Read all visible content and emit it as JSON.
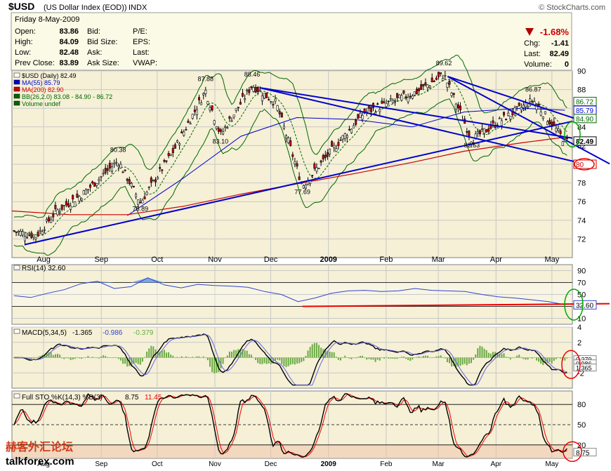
{
  "header": {
    "symbol": "$USD",
    "name": "(US Dollar Index (EOD))",
    "exchange": "INDX",
    "copyright": "© StockCharts.com"
  },
  "quote": {
    "date_line": "Friday   8-May-2009",
    "left": [
      {
        "label": "Open:",
        "value": "83.86"
      },
      {
        "label": "High:",
        "value": "84.09"
      },
      {
        "label": "Low:",
        "value": "82.48"
      },
      {
        "label": "Prev Close:",
        "value": "83.89"
      }
    ],
    "mid": [
      "Bid:",
      "Bid Size:",
      "Ask:",
      "Ask Size:"
    ],
    "mid2": [
      "P/E:",
      "EPS:",
      "Last:",
      "VWAP:"
    ],
    "pct_change": "-1.68%",
    "right": [
      {
        "label": "Chg:",
        "value": "-1.41"
      },
      {
        "label": "Last:",
        "value": "82.49"
      },
      {
        "label": "Volume:",
        "value": "0"
      }
    ],
    "down_color": "#cc0000"
  },
  "price_legend": [
    {
      "text": "$USD (Daily) 82.49",
      "color": "#000000"
    },
    {
      "text": "MA(55) 85.79",
      "color": "#0000cc"
    },
    {
      "text": "MA(200) 82.90",
      "color": "#cc0000"
    },
    {
      "text": "BB(26,2.0) 83.08 - 84.90 - 86.72",
      "color": "#006600"
    },
    {
      "text": "Volume undef",
      "color": "#006600"
    }
  ],
  "rsi_legend": "RSI(14) 32.60",
  "macd_legend": {
    "label": "MACD(5,34,5)",
    "macd": "-1.365",
    "signal": "-0.986",
    "hist": "-0.379"
  },
  "sto_legend": {
    "label": "Full STO %K(14,3) %D(3)",
    "k": "8.75",
    "d": "11.45"
  },
  "watermark": {
    "chinese": "赫客外汇论坛",
    "site": "talkforex.com"
  },
  "chart_data": [
    {
      "type": "candlestick",
      "title": "$USD (Daily) 82.49",
      "ylim": [
        70,
        90
      ],
      "y_ticks": [
        72,
        74,
        76,
        78,
        80,
        82,
        84,
        86,
        88,
        90
      ],
      "x_ticks": [
        "Aug",
        "Sep",
        "Oct",
        "Nov",
        "Dec",
        "2009",
        "Feb",
        "Mar",
        "Apr",
        "May"
      ],
      "annotations": [
        "80.38",
        "75.89",
        "87.88",
        "83.10",
        "88.46",
        "77.69",
        "89.62",
        "82.63",
        "86.87"
      ],
      "price_flags": [
        "86.72",
        "85.79",
        "84.90",
        "82.49",
        "80"
      ],
      "close_series_approx": [
        {
          "date": "2008-07-15",
          "close": 72.9
        },
        {
          "date": "2008-07-28",
          "close": 72.3
        },
        {
          "date": "2008-08-08",
          "close": 75.0
        },
        {
          "date": "2008-08-22",
          "close": 76.8
        },
        {
          "date": "2008-09-10",
          "close": 80.38
        },
        {
          "date": "2008-09-22",
          "close": 75.89
        },
        {
          "date": "2008-10-10",
          "close": 81.5
        },
        {
          "date": "2008-10-27",
          "close": 87.88
        },
        {
          "date": "2008-11-04",
          "close": 83.1
        },
        {
          "date": "2008-11-21",
          "close": 88.46
        },
        {
          "date": "2008-12-04",
          "close": 86.5
        },
        {
          "date": "2008-12-18",
          "close": 77.69
        },
        {
          "date": "2009-01-05",
          "close": 82.0
        },
        {
          "date": "2009-01-20",
          "close": 85.5
        },
        {
          "date": "2009-02-18",
          "close": 87.8
        },
        {
          "date": "2009-03-04",
          "close": 89.62
        },
        {
          "date": "2009-03-19",
          "close": 82.63
        },
        {
          "date": "2009-04-06",
          "close": 85.0
        },
        {
          "date": "2009-04-21",
          "close": 86.87
        },
        {
          "date": "2009-05-08",
          "close": 82.49
        }
      ],
      "ma55_approx": [
        {
          "date": "2008-09-15",
          "v": 74.5
        },
        {
          "date": "2008-10-15",
          "v": 78.5
        },
        {
          "date": "2008-11-15",
          "v": 83.0
        },
        {
          "date": "2008-12-15",
          "v": 85.0
        },
        {
          "date": "2009-01-15",
          "v": 84.8
        },
        {
          "date": "2009-02-15",
          "v": 84.0
        },
        {
          "date": "2009-03-15",
          "v": 85.6
        },
        {
          "date": "2009-04-15",
          "v": 86.0
        },
        {
          "date": "2009-05-08",
          "v": 85.79
        }
      ],
      "ma200_approx": [
        {
          "date": "2008-07-15",
          "v": 75.0
        },
        {
          "date": "2008-08-15",
          "v": 74.6
        },
        {
          "date": "2008-09-15",
          "v": 74.6
        },
        {
          "date": "2008-10-15",
          "v": 75.5
        },
        {
          "date": "2008-11-15",
          "v": 76.8
        },
        {
          "date": "2008-12-15",
          "v": 77.9
        },
        {
          "date": "2009-01-15",
          "v": 79.0
        },
        {
          "date": "2009-02-15",
          "v": 80.2
        },
        {
          "date": "2009-03-15",
          "v": 81.4
        },
        {
          "date": "2009-04-15",
          "v": 82.3
        },
        {
          "date": "2009-05-08",
          "v": 82.9
        }
      ],
      "trendlines": [
        {
          "from": {
            "date": "2008-07-22",
            "v": 71.4
          },
          "to": {
            "date": "2009-05-12",
            "v": 84.6
          }
        },
        {
          "from": {
            "date": "2008-11-25",
            "v": 88.2
          },
          "to": {
            "date": "2009-05-12",
            "v": 82.8
          }
        },
        {
          "from": {
            "date": "2008-11-25",
            "v": 88.2
          },
          "to": {
            "date": "2009-05-15",
            "v": 80.2
          }
        },
        {
          "from": {
            "date": "2009-03-06",
            "v": 89.4
          },
          "to": {
            "date": "2009-05-15",
            "v": 84.8
          }
        }
      ]
    },
    {
      "type": "line",
      "title": "RSI(14) 32.60",
      "ylim": [
        0,
        100
      ],
      "y_ticks": [
        10,
        30,
        50,
        70,
        90
      ],
      "current": 32.6,
      "values_approx": [
        48,
        45,
        52,
        58,
        68,
        72,
        60,
        63,
        78,
        66,
        61,
        67,
        65,
        64,
        62,
        55,
        50,
        38,
        44,
        52,
        56,
        57,
        55,
        56,
        60,
        57,
        56,
        55,
        50,
        46,
        44,
        41,
        38,
        32.6
      ],
      "support_line": {
        "from": 30,
        "to": 34.5
      }
    },
    {
      "type": "line",
      "title": "MACD(5,34,5)",
      "ylim": [
        -4,
        4
      ],
      "y_ticks": [
        -2,
        0,
        2,
        4
      ],
      "macd": -1.365,
      "signal": -0.986,
      "hist": -0.379
    },
    {
      "type": "line",
      "title": "Full STO %K(14,3) %D(3)",
      "ylim": [
        0,
        100
      ],
      "y_ticks": [
        20,
        50,
        80
      ],
      "k": 8.75,
      "d": 11.45
    }
  ]
}
